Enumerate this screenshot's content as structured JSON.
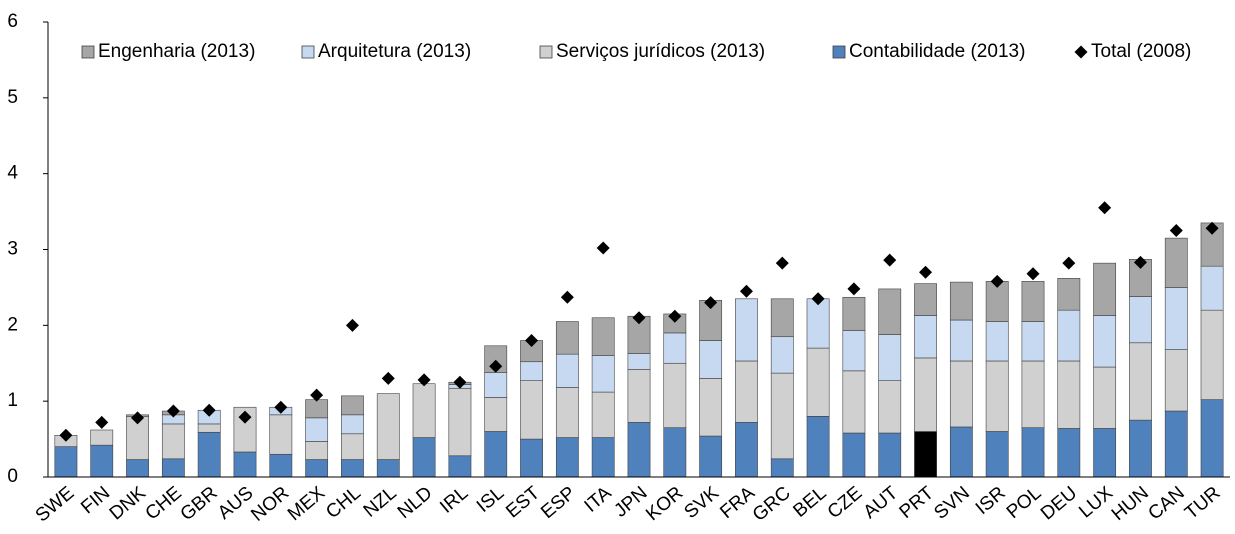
{
  "chart_data": {
    "type": "bar",
    "categories": [
      "SWE",
      "FIN",
      "DNK",
      "CHE",
      "GBR",
      "AUS",
      "NOR",
      "MEX",
      "CHL",
      "NZL",
      "NLD",
      "IRL",
      "ISL",
      "EST",
      "ESP",
      "ITA",
      "JPN",
      "KOR",
      "SVK",
      "FRA",
      "GRC",
      "BEL",
      "CZE",
      "AUT",
      "PRT",
      "SVN",
      "ISR",
      "POL",
      "DEU",
      "LUX",
      "HUN",
      "CAN",
      "TUR"
    ],
    "series": [
      {
        "name": "Engenharia (2013)",
        "type": "bar",
        "color": "#a6a6a6",
        "values": [
          0,
          0,
          0.02,
          0.05,
          0,
          0,
          0,
          0.24,
          0.25,
          0,
          0,
          0.03,
          0.35,
          0.28,
          0.43,
          0.5,
          0.49,
          0.25,
          0.53,
          0,
          0.5,
          0,
          0.44,
          0.6,
          0.42,
          0.5,
          0.53,
          0.53,
          0.42,
          0.69,
          0.49,
          0.65,
          0.57
        ]
      },
      {
        "name": "Arquitetura (2013)",
        "type": "bar",
        "color": "#c6d9f1",
        "values": [
          0,
          0,
          0,
          0.12,
          0.18,
          0,
          0.1,
          0.31,
          0.25,
          0,
          0,
          0.05,
          0.33,
          0.25,
          0.44,
          0.48,
          0.21,
          0.4,
          0.5,
          0.82,
          0.48,
          0.65,
          0.53,
          0.61,
          0.56,
          0.54,
          0.52,
          0.52,
          0.67,
          0.68,
          0.61,
          0.82,
          0.58
        ]
      },
      {
        "name": "Serviços jurídicos (2013)",
        "type": "bar",
        "color": "#d0d0d0",
        "values": [
          0.15,
          0.2,
          0.57,
          0.46,
          0.11,
          0.59,
          0.52,
          0.24,
          0.34,
          0.87,
          0.71,
          0.89,
          0.45,
          0.77,
          0.66,
          0.6,
          0.7,
          0.85,
          0.76,
          0.81,
          1.13,
          0.9,
          0.82,
          0.69,
          0.97,
          0.87,
          0.93,
          0.88,
          0.89,
          0.81,
          1.02,
          0.81,
          1.18
        ]
      },
      {
        "name": "Contabilidade (2013)",
        "type": "bar",
        "color": "#4f81bd",
        "values": [
          0.4,
          0.42,
          0.23,
          0.24,
          0.59,
          0.33,
          0.3,
          0.23,
          0.23,
          0.23,
          0.52,
          0.28,
          0.6,
          0.5,
          0.52,
          0.52,
          0.72,
          0.65,
          0.54,
          0.72,
          0.24,
          0.8,
          0.58,
          0.58,
          0.6,
          0.66,
          0.6,
          0.65,
          0.64,
          0.64,
          0.75,
          0.87,
          1.02
        ]
      },
      {
        "name": "Total (2008)",
        "type": "scatter",
        "color": "#000000",
        "values": [
          0.55,
          0.72,
          0.78,
          0.87,
          0.88,
          0.79,
          0.92,
          1.08,
          2.0,
          1.3,
          1.28,
          1.25,
          1.46,
          1.8,
          2.37,
          3.02,
          2.1,
          2.12,
          2.3,
          2.45,
          2.82,
          2.35,
          2.48,
          2.86,
          2.7,
          null,
          2.58,
          2.68,
          2.82,
          3.55,
          2.83,
          3.25,
          3.28
        ]
      }
    ],
    "highlight": "PRT",
    "highlight_color": "#000000",
    "ylim": [
      0,
      6
    ],
    "yticks": [
      0,
      1,
      2,
      3,
      4,
      5,
      6
    ],
    "grid": false
  }
}
